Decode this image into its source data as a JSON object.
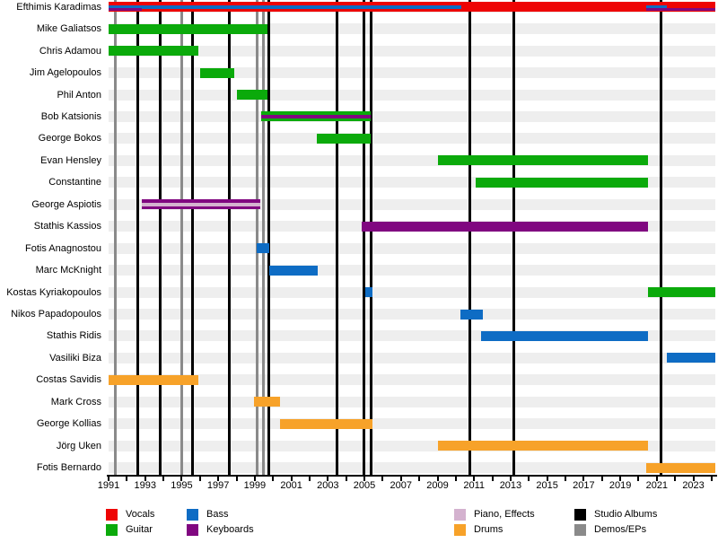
{
  "page": {
    "background": "#ffffff"
  },
  "chart_data": {
    "type": "bar",
    "subtype": "band-members-timeline-gantt",
    "title": "",
    "x_axis": {
      "start_year": 1991,
      "end_year": 2024.2,
      "label_years": [
        1991,
        1993,
        1995,
        1997,
        1999,
        2001,
        2003,
        2005,
        2007,
        2009,
        2011,
        2013,
        2015,
        2017,
        2019,
        2021,
        2023
      ],
      "minor_tick_every_years": 1,
      "grid": "off"
    },
    "colors": {
      "vocals": "#ee0404",
      "guitar": "#0baa0b",
      "bass": "#0e6cc4",
      "keyboards": "#800780",
      "piano_effects": "#d4b2cf",
      "drums": "#f7a229",
      "studio_albums": "#000000",
      "demos_eps": "#8a8a8a",
      "row_band": "#eeeeee"
    },
    "members": [
      {
        "name": "Efthimis Karadimas",
        "periods": [
          {
            "role": "Vocals",
            "color": "vocals",
            "start": 1991,
            "end": 2024.2,
            "layer": "full"
          },
          {
            "role": "Bass",
            "color": "bass",
            "start": 1991,
            "end": 2010.3,
            "layer": "mid"
          },
          {
            "role": "Keyboards",
            "color": "keyboards",
            "start": 1991,
            "end": 1992.8,
            "layer": "low"
          },
          {
            "role": "Bass",
            "color": "bass",
            "start": 2020.4,
            "end": 2021.55,
            "layer": "mid"
          },
          {
            "role": "Keyboards",
            "color": "keyboards",
            "start": 2020.4,
            "end": 2024.2,
            "layer": "low"
          }
        ]
      },
      {
        "name": "Mike Galiatsos",
        "periods": [
          {
            "role": "Guitar",
            "color": "guitar",
            "start": 1991,
            "end": 1999.7,
            "layer": "full"
          }
        ]
      },
      {
        "name": "Chris Adamou",
        "periods": [
          {
            "role": "Guitar",
            "color": "guitar",
            "start": 1991,
            "end": 1995.9,
            "layer": "full"
          }
        ]
      },
      {
        "name": "Jim Agelopoulos",
        "periods": [
          {
            "role": "Guitar",
            "color": "guitar",
            "start": 1996.0,
            "end": 1997.9,
            "layer": "full"
          }
        ]
      },
      {
        "name": "Phil Anton",
        "periods": [
          {
            "role": "Guitar",
            "color": "guitar",
            "start": 1998.0,
            "end": 1999.7,
            "layer": "full"
          }
        ]
      },
      {
        "name": "Bob Katsionis",
        "periods": [
          {
            "role": "Guitar",
            "color": "guitar",
            "start": 1999.35,
            "end": 2005.35,
            "layer": "full"
          },
          {
            "role": "Keyboards",
            "color": "keyboards",
            "start": 1999.35,
            "end": 2005.35,
            "layer": "mid"
          }
        ]
      },
      {
        "name": "George Bokos",
        "periods": [
          {
            "role": "Guitar",
            "color": "guitar",
            "start": 2002.4,
            "end": 2005.35,
            "layer": "full"
          }
        ]
      },
      {
        "name": "Evan Hensley",
        "periods": [
          {
            "role": "Guitar",
            "color": "guitar",
            "start": 2009.0,
            "end": 2020.5,
            "layer": "full"
          }
        ]
      },
      {
        "name": "Constantine",
        "periods": [
          {
            "role": "Guitar",
            "color": "guitar",
            "start": 2011.1,
            "end": 2020.5,
            "layer": "full"
          }
        ]
      },
      {
        "name": "George Aspiotis",
        "periods": [
          {
            "role": "Keyboards",
            "color": "keyboards",
            "start": 1992.8,
            "end": 1999.3,
            "layer": "full"
          },
          {
            "role": "Piano, Effects",
            "color": "piano_effects",
            "start": 1992.8,
            "end": 1999.3,
            "layer": "mid"
          }
        ]
      },
      {
        "name": "Stathis Kassios",
        "periods": [
          {
            "role": "Keyboards",
            "color": "keyboards",
            "start": 2004.85,
            "end": 2020.5,
            "layer": "full"
          }
        ]
      },
      {
        "name": "Fotis Anagnostou",
        "periods": [
          {
            "role": "Bass",
            "color": "bass",
            "start": 1999.1,
            "end": 1999.8,
            "layer": "full"
          }
        ]
      },
      {
        "name": "Marc McKnight",
        "periods": [
          {
            "role": "Bass",
            "color": "bass",
            "start": 1999.8,
            "end": 2002.45,
            "layer": "full"
          }
        ]
      },
      {
        "name": "Kostas Kyriakopoulos",
        "periods": [
          {
            "role": "Bass",
            "color": "bass",
            "start": 2005.05,
            "end": 2005.45,
            "layer": "full"
          },
          {
            "role": "Guitar",
            "color": "guitar",
            "start": 2020.5,
            "end": 2024.2,
            "layer": "full"
          }
        ]
      },
      {
        "name": "Nikos Papadopoulos",
        "periods": [
          {
            "role": "Bass",
            "color": "bass",
            "start": 2010.25,
            "end": 2011.5,
            "layer": "full"
          }
        ]
      },
      {
        "name": "Stathis Ridis",
        "periods": [
          {
            "role": "Bass",
            "color": "bass",
            "start": 2011.4,
            "end": 2020.5,
            "layer": "full"
          }
        ]
      },
      {
        "name": "Vasiliki Biza",
        "periods": [
          {
            "role": "Bass",
            "color": "bass",
            "start": 2021.55,
            "end": 2024.2,
            "layer": "full"
          }
        ]
      },
      {
        "name": "Costas Savidis",
        "periods": [
          {
            "role": "Drums",
            "color": "drums",
            "start": 1991,
            "end": 1995.9,
            "layer": "full"
          }
        ]
      },
      {
        "name": "Mark Cross",
        "periods": [
          {
            "role": "Drums",
            "color": "drums",
            "start": 1998.95,
            "end": 2000.4,
            "layer": "full"
          }
        ]
      },
      {
        "name": "George Kollias",
        "periods": [
          {
            "role": "Drums",
            "color": "drums",
            "start": 2000.4,
            "end": 2005.45,
            "layer": "full"
          }
        ]
      },
      {
        "name": "Jörg Uken",
        "periods": [
          {
            "role": "Drums",
            "color": "drums",
            "start": 2009.0,
            "end": 2020.5,
            "layer": "full"
          }
        ]
      },
      {
        "name": "Fotis Bernardo",
        "periods": [
          {
            "role": "Drums",
            "color": "drums",
            "start": 2020.4,
            "end": 2024.2,
            "layer": "full"
          }
        ]
      }
    ],
    "event_lines": {
      "studio_albums_years": [
        1992.6,
        1993.8,
        1995.6,
        1997.6,
        1999.75,
        2003.5,
        2004.95,
        2005.35,
        2010.75,
        2013.15,
        2021.25
      ],
      "demos_eps_years": [
        1991.35,
        1995.0,
        1999.15,
        1999.45
      ]
    },
    "legend_position": "bottom",
    "legend": [
      {
        "label": "Vocals",
        "color": "vocals"
      },
      {
        "label": "Guitar",
        "color": "guitar"
      },
      {
        "label": "Bass",
        "color": "bass"
      },
      {
        "label": "Keyboards",
        "color": "keyboards"
      },
      {
        "label": "Piano, Effects",
        "color": "piano_effects"
      },
      {
        "label": "Drums",
        "color": "drums"
      },
      {
        "label": "Studio Albums",
        "color": "studio_albums"
      },
      {
        "label": "Demos/EPs",
        "color": "demos_eps"
      }
    ]
  }
}
